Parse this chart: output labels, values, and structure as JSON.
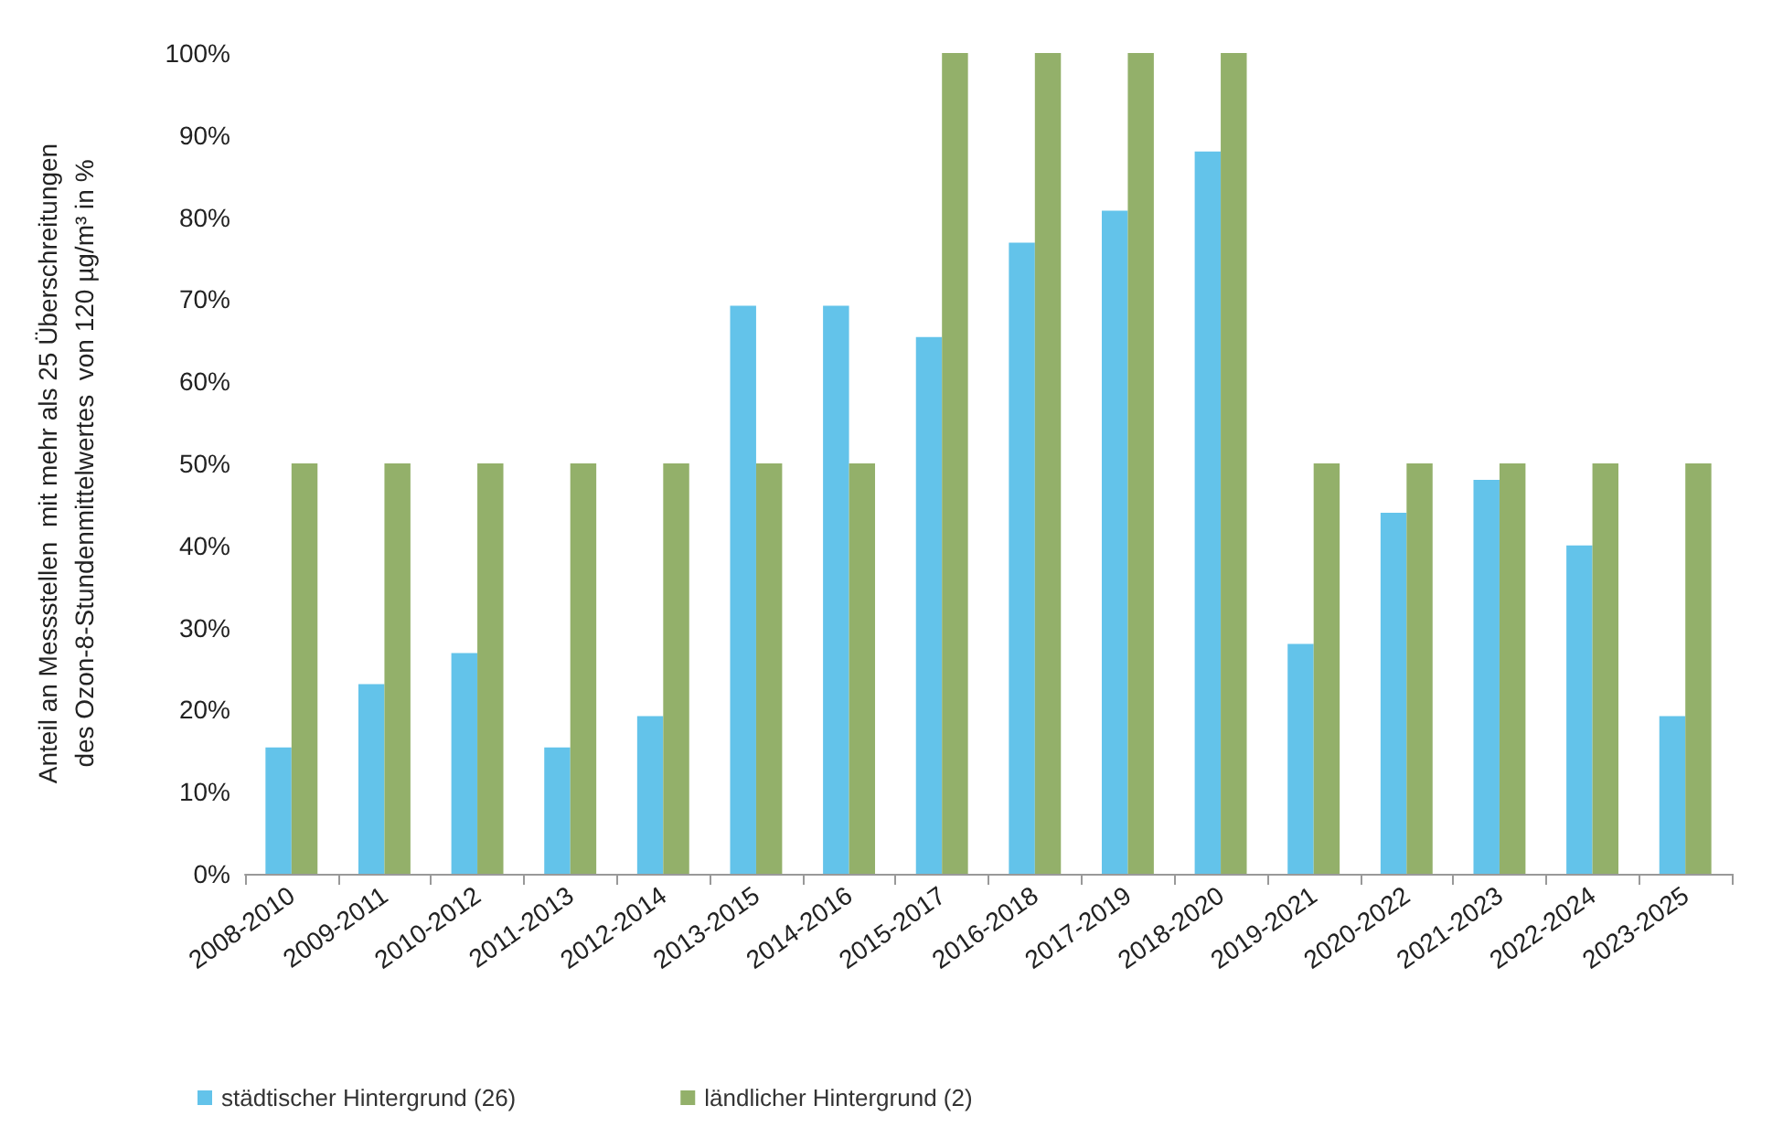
{
  "chart_data": {
    "type": "bar",
    "ylabel": "Anteil an Messstellen  mit mehr als 25 Überschreitungen\ndes Ozon-8-Stundenmittelwertes  von 120 µg/m³ in %",
    "categories": [
      "2008-2010",
      "2009-2011",
      "2010-2012",
      "2011-2013",
      "2012-2014",
      "2013-2015",
      "2014-2016",
      "2015-2017",
      "2016-2018",
      "2017-2019",
      "2018-2020",
      "2019-2021",
      "2020-2022",
      "2021-2023",
      "2022-2024",
      "2023-2025"
    ],
    "series": [
      {
        "name": "städtischer Hintergrund (26)",
        "color": "#63c3ea",
        "values": [
          15.4,
          23.1,
          26.9,
          15.4,
          19.2,
          69.2,
          69.2,
          65.4,
          76.9,
          80.8,
          88,
          28,
          44,
          48,
          40,
          19.2
        ]
      },
      {
        "name": "ländlicher Hintergrund (2)",
        "color": "#93b06a",
        "values": [
          50,
          50,
          50,
          50,
          50,
          50,
          50,
          100,
          100,
          100,
          100,
          50,
          50,
          50,
          50,
          50
        ]
      }
    ],
    "ylim": [
      0,
      100
    ],
    "yticks": [
      {
        "value": 0,
        "label": "0%"
      },
      {
        "value": 10,
        "label": "10%"
      },
      {
        "value": 20,
        "label": "20%"
      },
      {
        "value": 30,
        "label": "30%"
      },
      {
        "value": 40,
        "label": "40%"
      },
      {
        "value": 50,
        "label": "50%"
      },
      {
        "value": 60,
        "label": "60%"
      },
      {
        "value": 70,
        "label": "70%"
      },
      {
        "value": 80,
        "label": "80%"
      },
      {
        "value": 90,
        "label": "90%"
      },
      {
        "value": 100,
        "label": "100%"
      }
    ],
    "grid": false,
    "legend": "bottom left"
  }
}
